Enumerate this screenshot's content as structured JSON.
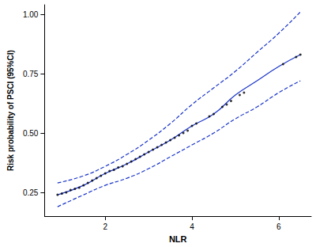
{
  "chart_data": {
    "type": "scatter",
    "x_label": "NLR",
    "y_label": "Risk probability of PSCI (95%CI)",
    "xlim": [
      0.6,
      6.75
    ],
    "xticks": [
      2,
      4,
      6
    ],
    "ylim": [
      0.15,
      1.04
    ],
    "yticks": [
      {
        "value": 0.25,
        "label": "0.25"
      },
      {
        "value": 0.5,
        "label": "0.50"
      },
      {
        "value": 0.75,
        "label": "0.75"
      },
      {
        "value": 1,
        "label": "1.00"
      }
    ],
    "grid": false,
    "series": [
      {
        "type": "scatter",
        "color": "#000000",
        "marker": "circle",
        "x": [
          0.9,
          1.0,
          1.1,
          1.2,
          1.3,
          1.4,
          1.5,
          1.6,
          1.7,
          1.8,
          1.9,
          2.0,
          2.1,
          2.2,
          2.3,
          2.4,
          2.5,
          2.6,
          2.7,
          2.8,
          2.9,
          3.0,
          3.1,
          3.2,
          3.3,
          3.4,
          3.5,
          3.6,
          3.7,
          3.8,
          3.9,
          4.0,
          4.1,
          4.4,
          4.5,
          4.7,
          4.8,
          4.9,
          5.1,
          5.2,
          6.1,
          6.4,
          6.5
        ],
        "values": [
          0.24,
          0.245,
          0.25,
          0.26,
          0.265,
          0.27,
          0.28,
          0.29,
          0.3,
          0.31,
          0.32,
          0.33,
          0.34,
          0.345,
          0.355,
          0.36,
          0.37,
          0.38,
          0.39,
          0.4,
          0.41,
          0.42,
          0.43,
          0.44,
          0.45,
          0.46,
          0.47,
          0.48,
          0.49,
          0.5,
          0.51,
          0.53,
          0.54,
          0.57,
          0.58,
          0.61,
          0.62,
          0.635,
          0.66,
          0.67,
          0.79,
          0.82,
          0.83
        ]
      },
      {
        "type": "line",
        "color": "#1a35c9",
        "line_style": "solid",
        "x": [
          0.9,
          1.5,
          2.0,
          2.5,
          3.0,
          3.5,
          4.0,
          4.5,
          5.0,
          5.5,
          6.0,
          6.5
        ],
        "values": [
          0.24,
          0.28,
          0.33,
          0.37,
          0.42,
          0.47,
          0.53,
          0.58,
          0.66,
          0.72,
          0.78,
          0.83
        ]
      },
      {
        "type": "line",
        "color": "#1a35c9",
        "line_style": "dashed",
        "x": [
          0.9,
          1.5,
          2.0,
          2.5,
          3.0,
          3.5,
          4.0,
          4.5,
          5.0,
          5.5,
          6.0,
          6.5
        ],
        "values": [
          0.29,
          0.32,
          0.36,
          0.41,
          0.47,
          0.54,
          0.62,
          0.69,
          0.76,
          0.84,
          0.92,
          1.01
        ]
      },
      {
        "type": "line",
        "color": "#1a35c9",
        "line_style": "dashed",
        "x": [
          0.9,
          1.5,
          2.0,
          2.5,
          3.0,
          3.5,
          4.0,
          4.5,
          5.0,
          5.5,
          6.0,
          6.5
        ],
        "values": [
          0.19,
          0.24,
          0.28,
          0.31,
          0.35,
          0.4,
          0.45,
          0.5,
          0.56,
          0.61,
          0.67,
          0.72
        ]
      }
    ]
  }
}
